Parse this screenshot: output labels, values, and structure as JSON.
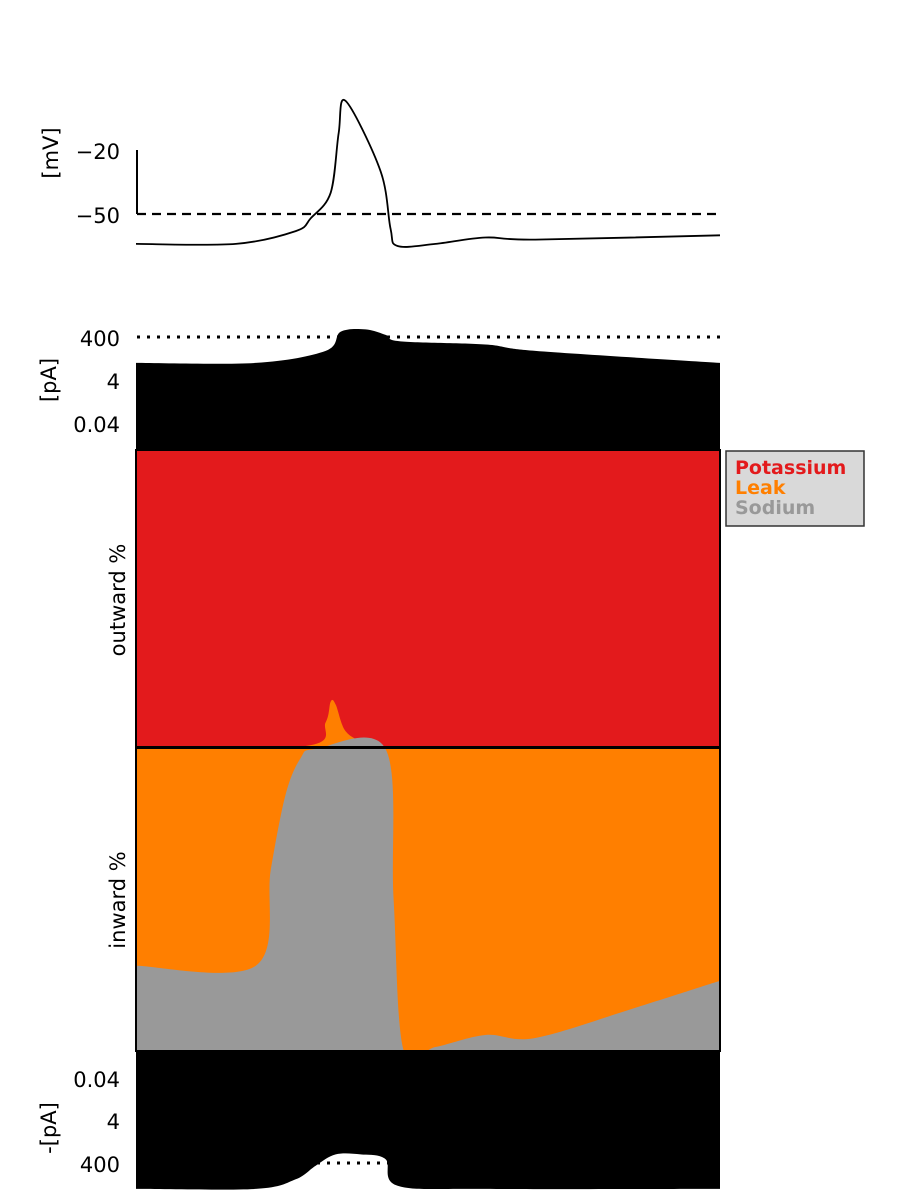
{
  "chart_data": [
    {
      "type": "line",
      "panel": "membrane-voltage",
      "ylabel": "[mV]",
      "yticks": [
        "−20",
        "−50"
      ],
      "ytick_values": [
        -20,
        -50
      ],
      "reference_line": {
        "value": -50,
        "style": "dashed"
      },
      "x": [
        0,
        100,
        160,
        175,
        195,
        203,
        210,
        245,
        255,
        262,
        300,
        350,
        400,
        585
      ],
      "y": [
        -64,
        -64,
        -58,
        -52,
        -40,
        -12,
        3,
        -30,
        -57,
        -65,
        -64,
        -61,
        -62,
        -60
      ]
    },
    {
      "type": "area",
      "panel": "outward-current-magnitude",
      "ylabel": "[pA]",
      "yticks": [
        "400",
        "4",
        "0.04"
      ],
      "ytick_values": [
        400,
        4,
        0.04
      ],
      "yscale": "log",
      "reference_line": {
        "value": 400,
        "style": "dotted"
      },
      "x": [
        0,
        120,
        190,
        205,
        230,
        250,
        265,
        350,
        400,
        585
      ],
      "y": [
        25,
        25,
        90,
        700,
        900,
        500,
        250,
        180,
        90,
        25
      ]
    },
    {
      "type": "area",
      "panel": "current-shares",
      "ylabel_top": "outward %",
      "ylabel_bottom": "inward %",
      "legend": {
        "position": "right",
        "entries": [
          "Potassium",
          "Leak",
          "Sodium"
        ]
      },
      "outward_leak_fraction": {
        "x": [
          0,
          170,
          190,
          195,
          200,
          210,
          230,
          250,
          585
        ],
        "y": [
          0,
          0,
          0.08,
          0.15,
          0.14,
          0.05,
          0.01,
          0,
          0
        ]
      },
      "inward_sodium_fraction": {
        "x": [
          0,
          120,
          135,
          150,
          165,
          180,
          250,
          258,
          268,
          300,
          350,
          400,
          500,
          585
        ],
        "y": [
          0.28,
          0.28,
          0.6,
          0.85,
          0.97,
          1.0,
          1.0,
          0.5,
          0,
          0.01,
          0.05,
          0.04,
          0.14,
          0.23
        ]
      }
    },
    {
      "type": "area",
      "panel": "inward-current-magnitude",
      "ylabel": "-[pA]",
      "yticks": [
        "0.04",
        "4",
        "400"
      ],
      "ytick_values": [
        0.04,
        4,
        400
      ],
      "yscale": "log",
      "reference_line": {
        "value": 400,
        "style": "dotted"
      },
      "x": [
        0,
        120,
        160,
        180,
        200,
        225,
        250,
        262,
        350,
        585
      ],
      "y": [
        25,
        25,
        70,
        300,
        1000,
        1000,
        600,
        35,
        25,
        25
      ]
    }
  ],
  "legend": {
    "items": [
      {
        "label": "Potassium",
        "color": "#e31a1c"
      },
      {
        "label": "Leak",
        "color": "#ff7f00"
      },
      {
        "label": "Sodium",
        "color": "#999999"
      }
    ]
  },
  "colors": {
    "potassium": "#e31a1c",
    "leak": "#ff7f00",
    "sodium": "#999999",
    "magnitude": "#000000",
    "legend_background": "#d9d9d9"
  }
}
